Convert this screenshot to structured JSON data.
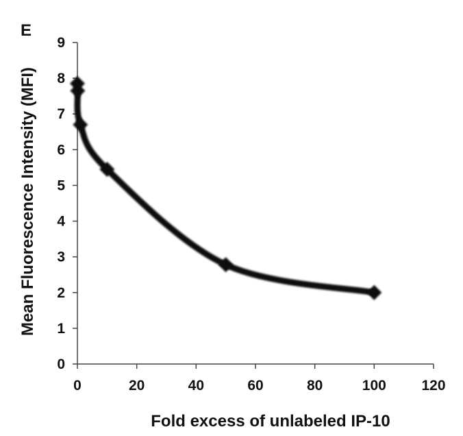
{
  "panel_label": "E",
  "chart_data": {
    "type": "line",
    "title": "",
    "xlabel": "Fold excess of unlabeled IP-10",
    "ylabel": "Mean Fluorescence Intensity (MFI)",
    "xlim": [
      0,
      120
    ],
    "ylim": [
      0,
      9
    ],
    "x_ticks": [
      "0",
      "20",
      "40",
      "60",
      "80",
      "100",
      "120"
    ],
    "y_ticks": [
      "0",
      "1",
      "2",
      "3",
      "4",
      "5",
      "6",
      "7",
      "8",
      "9"
    ],
    "grid": false,
    "legend": "none",
    "marker": "diamond",
    "line_style": "smoothed",
    "series_color": "#111111",
    "series": [
      {
        "x": [
          0,
          0.1,
          1,
          10,
          50,
          100
        ],
        "y": [
          7.85,
          7.65,
          6.7,
          5.45,
          2.78,
          2.0
        ]
      }
    ]
  }
}
